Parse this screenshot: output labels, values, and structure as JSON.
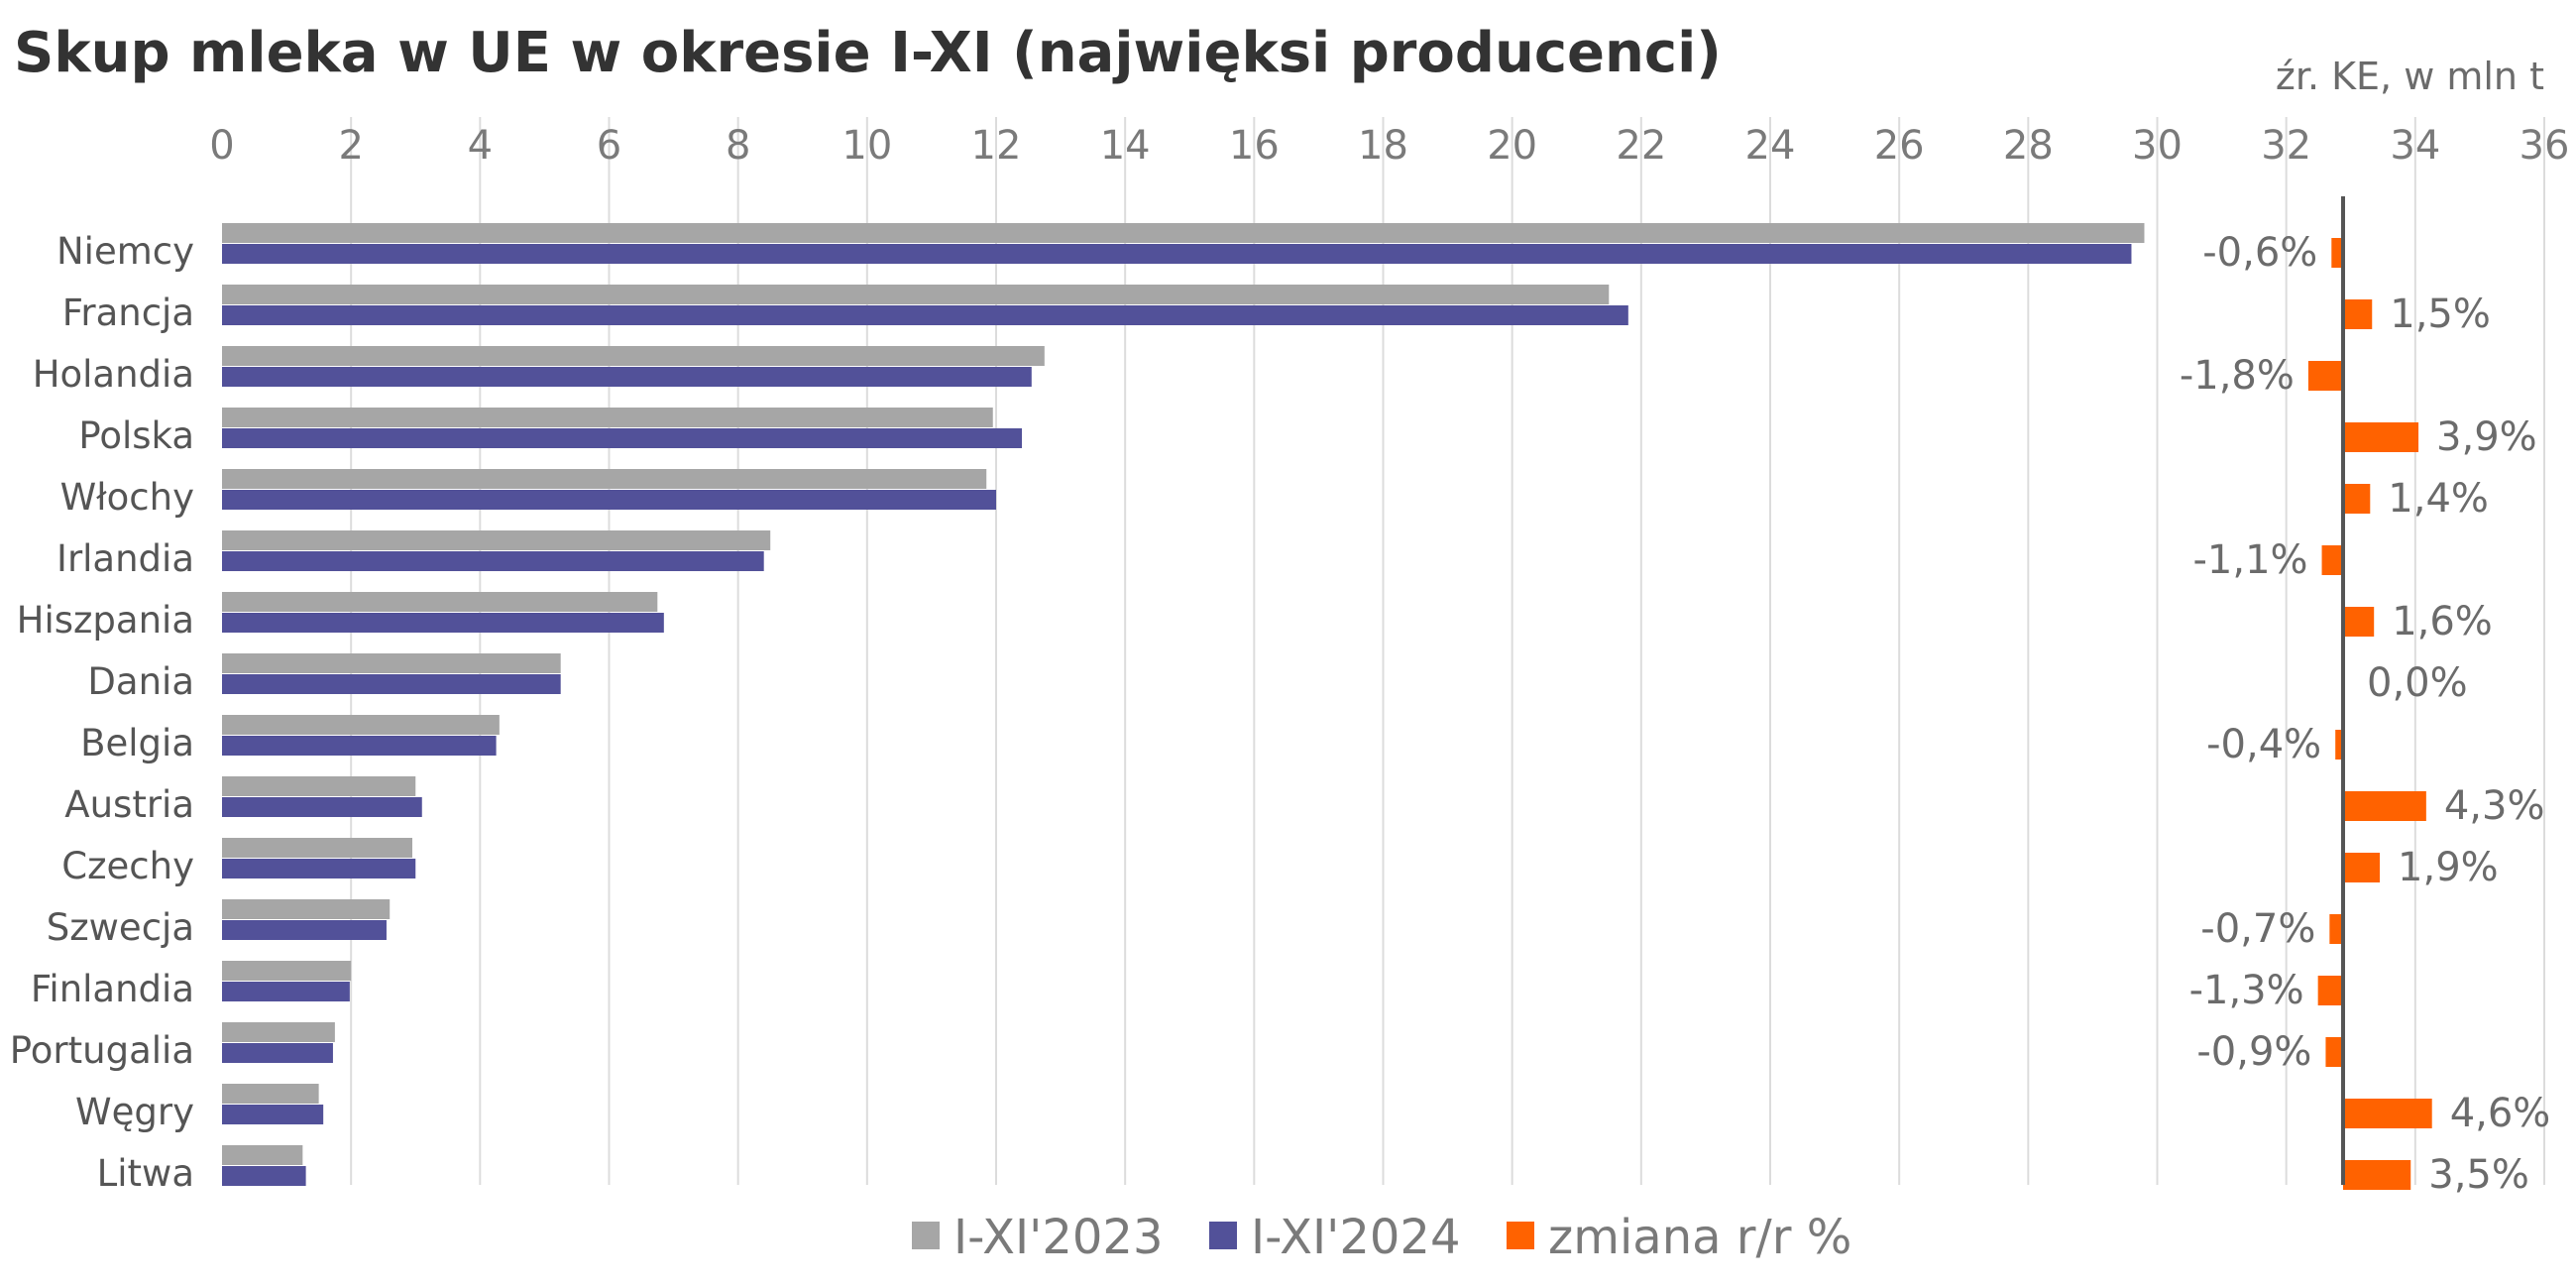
{
  "chart_data": {
    "type": "bar",
    "orientation": "horizontal",
    "title": "Skup mleka w UE w okresie I-XI (najwięksi producenci)",
    "unit_label": "źr. KE, w mln t",
    "x_ticks": [
      "0",
      "2",
      "4",
      "6",
      "8",
      "10",
      "12",
      "14",
      "16",
      "18",
      "20",
      "22",
      "24",
      "26",
      "28",
      "30",
      "32",
      "34",
      "36"
    ],
    "xlim": [
      0,
      36
    ],
    "grid": true,
    "legend_position": "bottom",
    "categories": [
      "Niemcy",
      "Francja",
      "Holandia",
      "Polska",
      "Włochy",
      "Irlandia",
      "Hiszpania",
      "Dania",
      "Belgia",
      "Austria",
      "Czechy",
      "Szwecja",
      "Finlandia",
      "Portugalia",
      "Węgry",
      "Litwa"
    ],
    "series": [
      {
        "name": "I-XI'2023",
        "color": "#a6a6a6",
        "values": [
          29.8,
          21.5,
          12.75,
          11.95,
          11.85,
          8.5,
          6.75,
          5.25,
          4.3,
          3.0,
          2.95,
          2.6,
          2.0,
          1.75,
          1.5,
          1.25
        ]
      },
      {
        "name": "I-XI'2024",
        "color": "#525199",
        "values": [
          29.6,
          21.8,
          12.55,
          12.4,
          12.0,
          8.4,
          6.85,
          5.25,
          4.25,
          3.1,
          3.0,
          2.55,
          1.98,
          1.72,
          1.57,
          1.3
        ]
      },
      {
        "name": "zmiana r/r %",
        "color": "#ff6200",
        "values": [
          -0.6,
          1.5,
          -1.8,
          3.9,
          1.4,
          -1.1,
          1.6,
          0.0,
          -0.4,
          4.3,
          1.9,
          -0.7,
          -1.3,
          -0.9,
          4.6,
          3.5
        ],
        "labels": [
          "-0,6%",
          "1,5%",
          "-1,8%",
          "3,9%",
          "1,4%",
          "-1,1%",
          "1,6%",
          "0,0%",
          "-0,4%",
          "4,3%",
          "1,9%",
          "-0,7%",
          "-1,3%",
          "-0,9%",
          "4,6%",
          "3,5%"
        ]
      }
    ]
  }
}
